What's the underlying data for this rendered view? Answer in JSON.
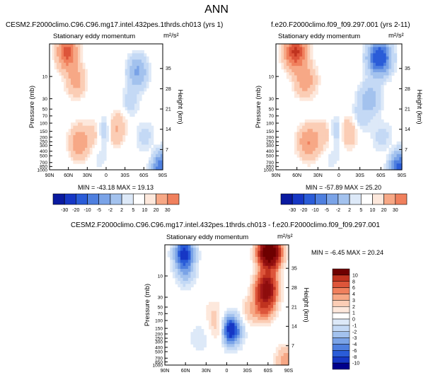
{
  "page": {
    "title": "ANN"
  },
  "colors": {
    "frame": "#000000",
    "neutral": "#ffffff",
    "pos_scale": [
      "#fde8dc",
      "#fbcdb5",
      "#f7a886",
      "#f0805d",
      "#dd553a",
      "#c0331f",
      "#8e0d0d"
    ],
    "neg_scale": [
      "#dde9f8",
      "#c4d9f5",
      "#a3c2ee",
      "#7aa3e7",
      "#4e7fdf",
      "#2a5cd8",
      "#1637c5",
      "#0a1aa0"
    ],
    "diff_colors": [
      "#00008b",
      "#0a1aa0",
      "#1637c5",
      "#2a5cd8",
      "#4e7fdf",
      "#7aa3e7",
      "#a3c2ee",
      "#c4d9f5",
      "#dde9f8",
      "#ffffff",
      "#fde8dc",
      "#fbcdb5",
      "#f7a886",
      "#f0805d",
      "#dd553a",
      "#c0331f",
      "#a01818",
      "#8e0d0d",
      "#6e0000"
    ],
    "abs_colors": [
      "#0a1aa0",
      "#1637c5",
      "#2a5cd8",
      "#4e7fdf",
      "#7aa3e7",
      "#a3c2ee",
      "#c4d9f5",
      "#dde9f8",
      "#ffffff",
      "#fde8dc",
      "#fbcdb5",
      "#f7a886",
      "#f0805d",
      "#dd553a",
      "#c0331f",
      "#8e0d0d"
    ]
  },
  "chart_data": [
    {
      "id": "p1",
      "type": "heatmap",
      "title": "CESM2.F2000climo.C96.C96.mg17.intel.432pes.1thrds.ch013 (yrs 1)",
      "subtitle": "Stationary eddy momentum",
      "units": "m²/s²",
      "ylabel": "Pressure (mb)",
      "y2label": "Height (km)",
      "xticks": [
        "90N",
        "60N",
        "30N",
        "0",
        "30S",
        "60S",
        "90S"
      ],
      "pressure_ticks": [
        "10",
        "30",
        "50",
        "70",
        "100",
        "150",
        "200",
        "250",
        "300",
        "400",
        "500",
        "700",
        "850",
        "1000"
      ],
      "height_ticks": [
        "35",
        "28",
        "21",
        "14",
        "7"
      ],
      "stats": "MIN = -43.18  MAX = 19.13",
      "min": -43.18,
      "max": 19.13,
      "amp": 1.0,
      "features": [
        {
          "lat": 62,
          "p": 3,
          "value": 18
        },
        {
          "lat": 48,
          "p": 12,
          "value": 7
        },
        {
          "lat": 43,
          "p": 260,
          "value": 9
        },
        {
          "lat": 18,
          "p": 170,
          "value": 3.5
        },
        {
          "lat": 0,
          "p": 150,
          "value": -7
        },
        {
          "lat": -10,
          "p": 150,
          "value": 7
        },
        {
          "lat": -50,
          "p": 8,
          "value": -11
        },
        {
          "lat": -38,
          "p": 35,
          "value": -3
        },
        {
          "lat": -22,
          "p": 100,
          "value": 2
        },
        {
          "lat": -62,
          "p": 200,
          "value": -3
        },
        {
          "lat": -80,
          "p": 650,
          "value": 6
        },
        {
          "lat": -86,
          "p": 850,
          "value": -24
        },
        {
          "lat": 10,
          "p": 550,
          "value": -1.4
        }
      ]
    },
    {
      "id": "p2",
      "type": "heatmap",
      "title": "f.e20.F2000climo.f09_f09.297.001 (yrs 2-11)",
      "subtitle": "Stationary eddy momentum",
      "units": "m²/s²",
      "ylabel": "Pressure (mb)",
      "y2label": "Height (km)",
      "xticks": [
        "90N",
        "60N",
        "30N",
        "0",
        "30S",
        "60S",
        "90S"
      ],
      "pressure_ticks": [
        "10",
        "30",
        "50",
        "70",
        "100",
        "150",
        "200",
        "250",
        "300",
        "400",
        "500",
        "700",
        "850",
        "1000"
      ],
      "height_ticks": [
        "35",
        "28",
        "21",
        "14",
        "7"
      ],
      "stats": "MIN = -57.89  MAX = 25.20",
      "min": -57.89,
      "max": 25.2,
      "amp": 1.0,
      "features": [
        {
          "lat": 62,
          "p": 3,
          "value": 22
        },
        {
          "lat": 48,
          "p": 12,
          "value": 8
        },
        {
          "lat": 43,
          "p": 260,
          "value": 10
        },
        {
          "lat": 18,
          "p": 170,
          "value": 4
        },
        {
          "lat": 0,
          "p": 150,
          "value": -8
        },
        {
          "lat": -10,
          "p": 150,
          "value": 9
        },
        {
          "lat": -58,
          "p": 4,
          "value": -30
        },
        {
          "lat": -44,
          "p": 30,
          "value": -8
        },
        {
          "lat": -30,
          "p": 80,
          "value": -3
        },
        {
          "lat": -62,
          "p": 200,
          "value": -3
        },
        {
          "lat": -80,
          "p": 650,
          "value": 7
        },
        {
          "lat": -86,
          "p": 850,
          "value": -28
        },
        {
          "lat": 10,
          "p": 550,
          "value": -1.4
        }
      ]
    },
    {
      "id": "p3",
      "type": "heatmap",
      "title": "CESM2.F2000climo.C96.C96.mg17.intel.432pes.1thrds.ch013 - f.e20.F2000climo.f09_f09.297.001",
      "subtitle": "Stationary eddy momentum",
      "units": "m²/s²",
      "ylabel": "Pressure (mb)",
      "y2label": "Height (km)",
      "xticks": [
        "90N",
        "60N",
        "30N",
        "0",
        "30S",
        "60S",
        "90S"
      ],
      "pressure_ticks": [
        "10",
        "30",
        "50",
        "70",
        "100",
        "150",
        "200",
        "250",
        "300",
        "400",
        "500",
        "700",
        "850",
        "1000"
      ],
      "height_ticks": [
        "35",
        "28",
        "21",
        "14",
        "7"
      ],
      "stats": "MIN = -6.45  MAX = 20.24",
      "min": -6.45,
      "max": 20.24,
      "features": [
        {
          "lat": 62,
          "p": 3,
          "value": -6.5
        },
        {
          "lat": 60,
          "p": 8,
          "value": -2.5
        },
        {
          "lat": 40,
          "p": 250,
          "value": -1
        },
        {
          "lat": 8,
          "p": 150,
          "value": 2.5
        },
        {
          "lat": -4,
          "p": 155,
          "value": -5.5
        },
        {
          "lat": -8,
          "p": 180,
          "value": -3
        },
        {
          "lat": -62,
          "p": 3,
          "value": 20
        },
        {
          "lat": -58,
          "p": 18,
          "value": 11
        },
        {
          "lat": -55,
          "p": 45,
          "value": 5
        },
        {
          "lat": -35,
          "p": 60,
          "value": 1.5
        },
        {
          "lat": 20,
          "p": 60,
          "value": 0.8
        },
        {
          "lat": -86,
          "p": 850,
          "value": 3
        }
      ]
    }
  ],
  "colorbars": {
    "abs": {
      "levels": [
        "-30",
        "-20",
        "-10",
        "-5",
        "-2",
        "2",
        "5",
        "10",
        "20",
        "30"
      ]
    },
    "diff": {
      "levels": [
        "10",
        "8",
        "6",
        "4",
        "3",
        "2",
        "1",
        "0",
        "-1",
        "-2",
        "-3",
        "-4",
        "-6",
        "-8",
        "-10"
      ]
    }
  }
}
